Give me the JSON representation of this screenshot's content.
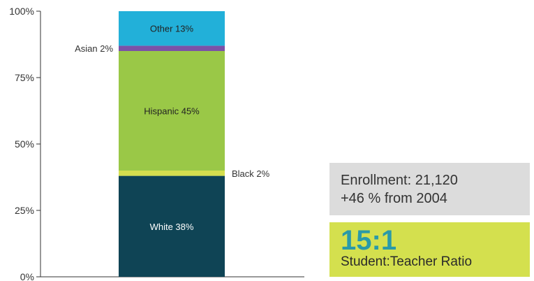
{
  "chart_data": {
    "type": "bar",
    "stacked": true,
    "categories": [
      ""
    ],
    "series": [
      {
        "name": "White",
        "label": "White 38%",
        "value": 38,
        "color": "#0f4455",
        "label_position": "inside",
        "label_color": "#ffffff"
      },
      {
        "name": "Black",
        "label": "Black 2%",
        "value": 2,
        "color": "#d5df4f",
        "label_position": "right",
        "label_color": "#333333"
      },
      {
        "name": "Hispanic",
        "label": "Hispanic 45%",
        "value": 45,
        "color": "#9ac847",
        "label_position": "inside",
        "label_color": "#222222"
      },
      {
        "name": "Asian",
        "label": "Asian 2%",
        "value": 2,
        "color": "#7a52a8",
        "label_position": "left",
        "label_color": "#333333"
      },
      {
        "name": "Other",
        "label": "Other 13%",
        "value": 13,
        "color": "#22b0d9",
        "label_position": "inside",
        "label_color": "#222222"
      }
    ],
    "ylim": [
      0,
      100
    ],
    "yticks": [
      0,
      25,
      50,
      75,
      100
    ],
    "ytick_labels": [
      "0%",
      "25%",
      "50%",
      "75%",
      "100%"
    ],
    "grid": false,
    "title": "",
    "xlabel": "",
    "ylabel": ""
  },
  "enrollment": {
    "line1": "Enrollment: 21,120",
    "line2": "+46 % from 2004"
  },
  "ratio": {
    "value": "15:1",
    "label": "Student:Teacher Ratio"
  }
}
